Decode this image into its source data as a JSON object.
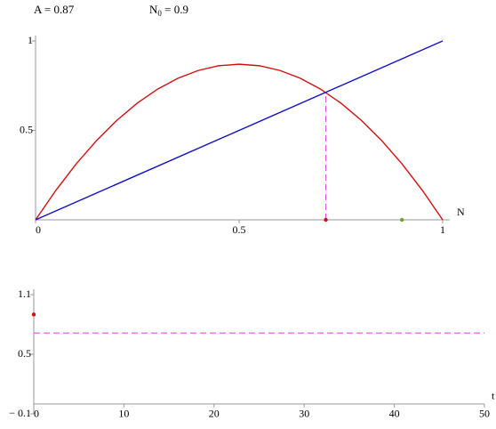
{
  "header": {
    "A": "A = 0.87",
    "N0": [
      "N",
      "0",
      " = 0.9"
    ]
  },
  "chart_data": [
    {
      "type": "line",
      "xlabel": "N",
      "xlim": [
        0,
        1
      ],
      "ylim": [
        0,
        1
      ],
      "xticks": [
        0,
        0.5,
        1
      ],
      "yticks": [
        0.5,
        1
      ],
      "series": [
        {
          "color": "#d01010",
          "x": [
            0,
            0.05,
            0.1,
            0.15,
            0.2,
            0.25,
            0.3,
            0.35,
            0.4,
            0.45,
            0.5,
            0.55,
            0.6,
            0.65,
            0.7,
            0.75,
            0.8,
            0.85,
            0.9,
            0.95,
            1
          ],
          "values": [
            0,
            0.1653,
            0.3132,
            0.4437,
            0.5568,
            0.6525,
            0.7308,
            0.7917,
            0.8352,
            0.8613,
            0.87,
            0.8613,
            0.8352,
            0.7917,
            0.7308,
            0.6525,
            0.5568,
            0.4437,
            0.3132,
            0.1653,
            0
          ]
        },
        {
          "color": "#1010c8",
          "x": [
            0,
            1
          ],
          "values": [
            0,
            1
          ]
        },
        {
          "color": "#e050e0",
          "dashed": true,
          "x": [
            0.713,
            0.713
          ],
          "values": [
            0,
            0.713
          ]
        },
        {
          "color": "#d01010",
          "marker": true,
          "x": [
            0.713
          ],
          "values": [
            0
          ]
        },
        {
          "color": "#70a030",
          "marker": true,
          "x": [
            0.9
          ],
          "values": [
            0
          ]
        }
      ]
    },
    {
      "type": "line",
      "xlabel": "t",
      "xlim": [
        0,
        50
      ],
      "ylim": [
        -0.1,
        1.1
      ],
      "xticks": [
        0,
        10,
        20,
        30,
        40,
        50
      ],
      "yticks": [
        {
          "value": -0.1,
          "label": "− 0.1"
        },
        0.5,
        1.1
      ],
      "series": [
        {
          "color": "#e050e0",
          "dashed": true,
          "x": [
            0,
            50
          ],
          "values": [
            0.713,
            0.713
          ]
        },
        {
          "color": "#d01010",
          "marker": true,
          "x": [
            0
          ],
          "values": [
            0.9
          ]
        }
      ]
    }
  ]
}
